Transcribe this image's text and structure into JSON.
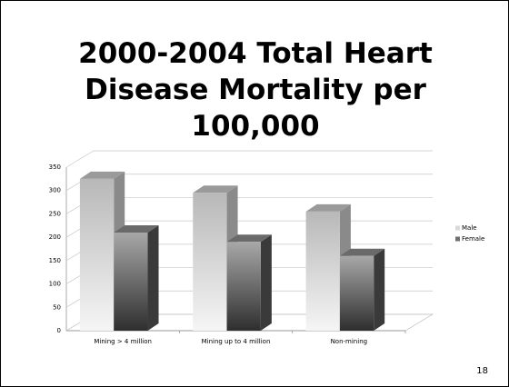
{
  "chart_data": {
    "type": "bar3d",
    "title": "2000-2004 Total Heart Disease Mortality per 100,000",
    "categories": [
      "Mining > 4 million",
      "Mining up to 4 million",
      "Non-mining"
    ],
    "series": [
      {
        "name": "Male",
        "color": "#d9d9d9",
        "values": [
          325,
          295,
          255
        ]
      },
      {
        "name": "Female",
        "color": "#707070",
        "values": [
          210,
          190,
          160
        ]
      }
    ],
    "ylim": [
      0,
      350
    ],
    "yticks": [
      0,
      50,
      100,
      150,
      200,
      250,
      300,
      350
    ],
    "grid": true,
    "legend": "right"
  },
  "slide_number": "18"
}
